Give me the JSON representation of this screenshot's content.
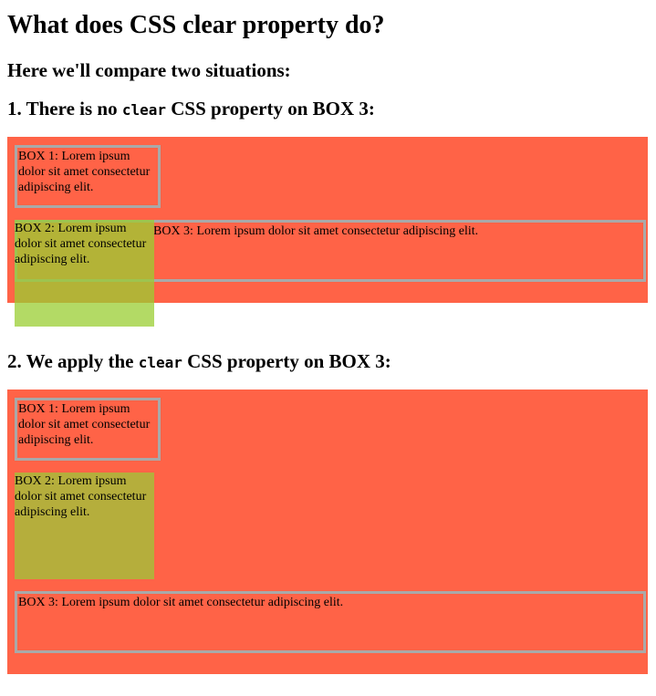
{
  "page": {
    "title": "What does CSS clear property do?",
    "subtitle": "Here we'll compare two situations:"
  },
  "section1": {
    "heading_pre": "1. There is no ",
    "heading_code": "clear",
    "heading_post": " CSS property on BOX 3:",
    "box1": "BOX 1: Lorem ipsum dolor sit amet consectetur adipiscing elit.",
    "box2": "BOX 2: Lorem ipsum dolor sit amet consectetur adipiscing elit.",
    "box3": "BOX 3: Lorem ipsum dolor sit amet consectetur adipiscing elit."
  },
  "section2": {
    "heading_pre": "2. We apply the ",
    "heading_code": "clear",
    "heading_post": " CSS property on BOX 3:",
    "box1": "BOX 1: Lorem ipsum dolor sit amet consectetur adipiscing elit.",
    "box2": "BOX 2: Lorem ipsum dolor sit amet consectetur adipiscing elit.",
    "box3": "BOX 3: Lorem ipsum dolor sit amet consectetur adipiscing elit."
  },
  "colors": {
    "container": "#ff6347",
    "float_box": "#9acd32",
    "border": "#a9a9a9"
  }
}
